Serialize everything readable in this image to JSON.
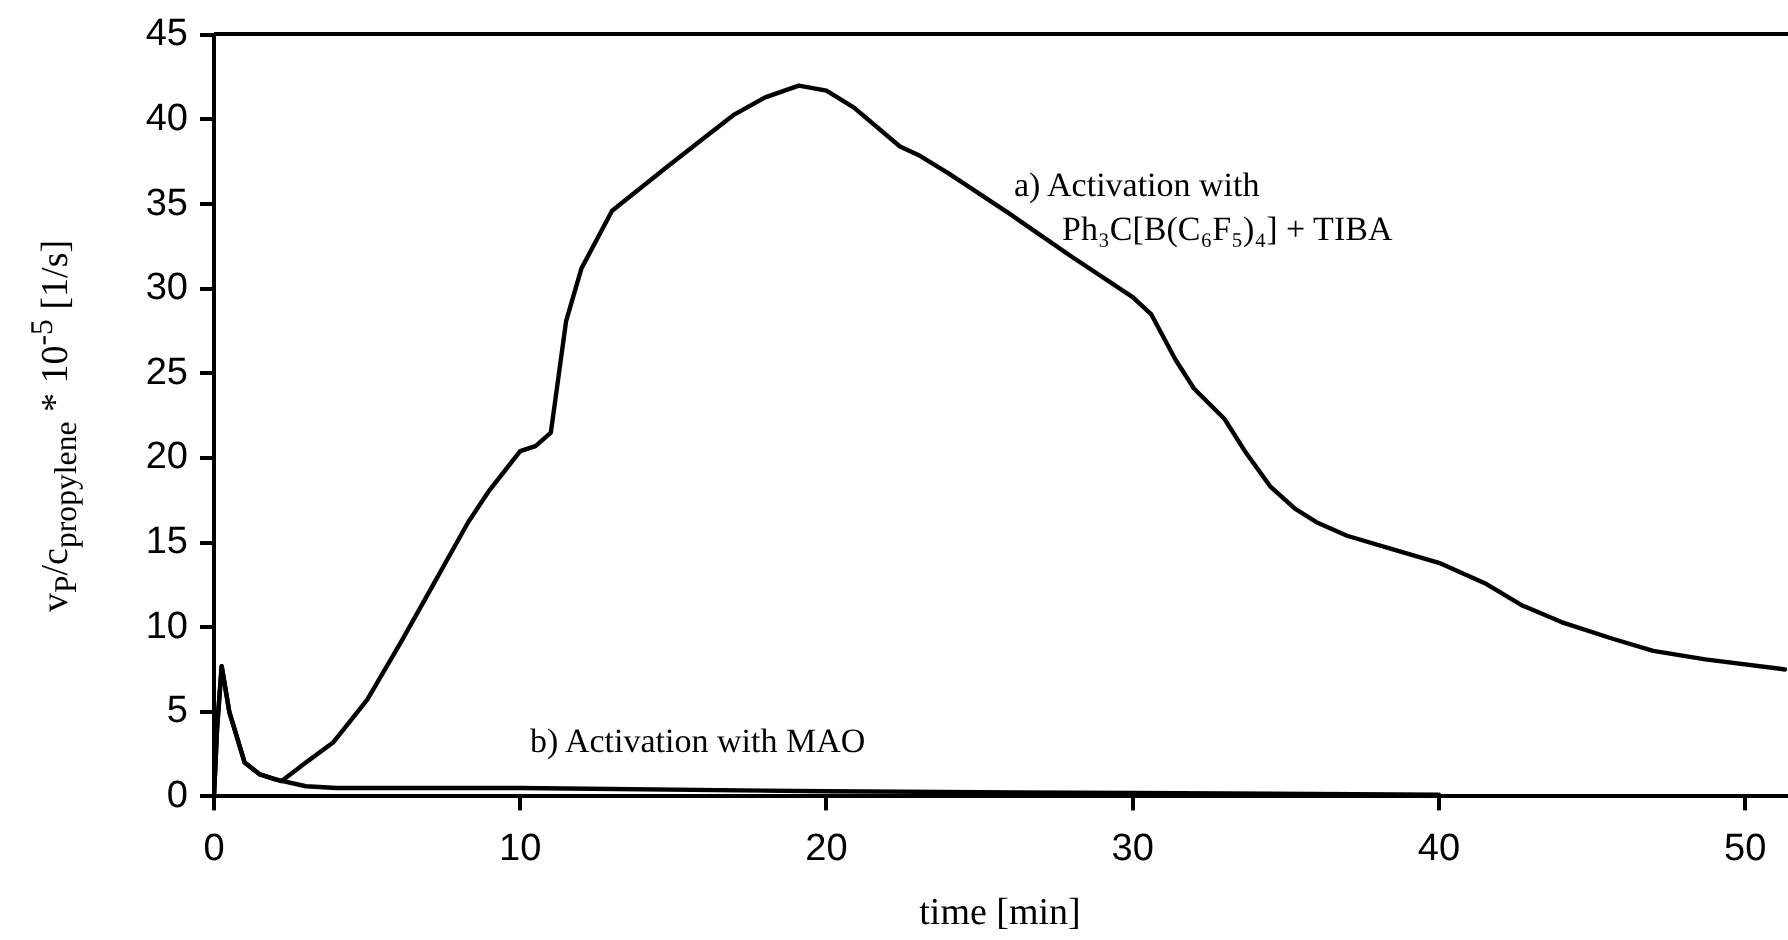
{
  "chart_data": {
    "type": "line",
    "xlabel": "time [min]",
    "ylabel": "v$_{P}$/c$_{propylene}$ * 10$^{-5}$ [1/s]",
    "xlim": [
      0,
      51.4
    ],
    "xticks": [
      0,
      10,
      20,
      30,
      40,
      50
    ],
    "ylim": [
      0,
      45
    ],
    "yticks": [
      0,
      5,
      10,
      15,
      20,
      25,
      30,
      35,
      40,
      45
    ],
    "grid": false,
    "legend": false,
    "marker": "none",
    "line_style": "solid",
    "series": [
      {
        "color": "#000000",
        "x": [
          0,
          0.1,
          0.25,
          0.5,
          1,
          1.5,
          2.2,
          3,
          3.9,
          5,
          6.1,
          7,
          8.3,
          9,
          10,
          10.5,
          11,
          11.5,
          12,
          13,
          14.8,
          16,
          17,
          18,
          19.1,
          20,
          20.9,
          22.4,
          23,
          24,
          26,
          28,
          30,
          30.6,
          31.4,
          32,
          33,
          33.7,
          34.5,
          35.3,
          36,
          37,
          38.5,
          40,
          41.5,
          42.7,
          44,
          45.7,
          47,
          48.7,
          51.3
        ],
        "values": [
          0,
          4,
          7.7,
          5,
          2,
          1.3,
          0.9,
          2,
          3.2,
          5.7,
          9.1,
          12,
          16.2,
          18.1,
          20.4,
          20.7,
          21.5,
          28.1,
          31.2,
          34.6,
          37.2,
          38.9,
          40.3,
          41.3,
          42,
          41.7,
          40.7,
          38.4,
          37.9,
          36.8,
          34.4,
          31.9,
          29.5,
          28.5,
          25.8,
          24.1,
          22.3,
          20.3,
          18.3,
          17,
          16.2,
          15.4,
          14.6,
          13.8,
          12.6,
          11.3,
          10.3,
          9.3,
          8.6,
          8.1,
          7.5
        ]
      },
      {
        "color": "#000000",
        "x": [
          0,
          0.1,
          0.25,
          0.5,
          1,
          1.5,
          2,
          3,
          4,
          10,
          20,
          30,
          40
        ],
        "values": [
          0,
          4,
          7.7,
          5,
          2,
          1.3,
          1,
          0.6,
          0.5,
          0.5,
          0.3,
          0.2,
          0.1
        ]
      }
    ],
    "annotations": [
      "a)  Activation with\nPh₃C[B(C₆F₅)₄] + TIBA",
      "b) Activation with MAO"
    ]
  }
}
